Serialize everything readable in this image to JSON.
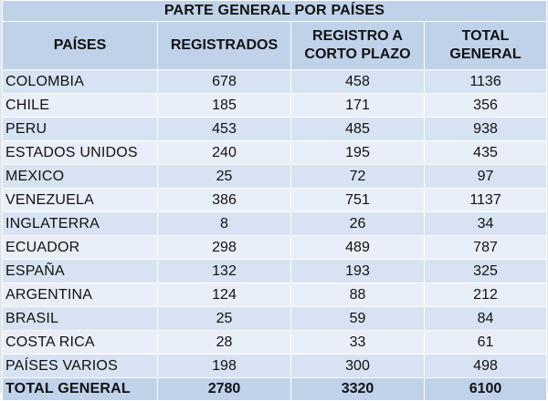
{
  "table": {
    "title": "PARTE GENERAL POR PAÍSES",
    "headers": [
      "PAÍSES",
      "REGISTRADOS",
      "REGISTRO A CORTO PLAZO",
      "TOTAL GENERAL"
    ],
    "rows": [
      {
        "country": "COLOMBIA",
        "registrados": "678",
        "corto_plazo": "458",
        "total": "1136"
      },
      {
        "country": "CHILE",
        "registrados": "185",
        "corto_plazo": "171",
        "total": "356"
      },
      {
        "country": "PERU",
        "registrados": "453",
        "corto_plazo": "485",
        "total": "938"
      },
      {
        "country": "ESTADOS UNIDOS",
        "registrados": "240",
        "corto_plazo": "195",
        "total": "435"
      },
      {
        "country": "MEXICO",
        "registrados": "25",
        "corto_plazo": "72",
        "total": "97"
      },
      {
        "country": "VENEZUELA",
        "registrados": "386",
        "corto_plazo": "751",
        "total": "1137"
      },
      {
        "country": "INGLATERRA",
        "registrados": "8",
        "corto_plazo": "26",
        "total": "34"
      },
      {
        "country": "ECUADOR",
        "registrados": "298",
        "corto_plazo": "489",
        "total": "787"
      },
      {
        "country": "ESPAÑA",
        "registrados": "132",
        "corto_plazo": "193",
        "total": "325"
      },
      {
        "country": "ARGENTINA",
        "registrados": "124",
        "corto_plazo": "88",
        "total": "212"
      },
      {
        "country": "BRASIL",
        "registrados": "25",
        "corto_plazo": "59",
        "total": "84"
      },
      {
        "country": "COSTA RICA",
        "registrados": "28",
        "corto_plazo": "33",
        "total": "61"
      },
      {
        "country": "PAÍSES VARIOS",
        "registrados": "198",
        "corto_plazo": "300",
        "total": "498"
      }
    ],
    "total": {
      "label": "TOTAL GENERAL",
      "registrados": "2780",
      "corto_plazo": "3320",
      "total": "6100"
    }
  },
  "colors": {
    "header_bg": "#bfd2ea",
    "row_bg": "#d7e3f2",
    "row_alt_bg": "#e9eff8",
    "grid_line": "#ffffff"
  }
}
